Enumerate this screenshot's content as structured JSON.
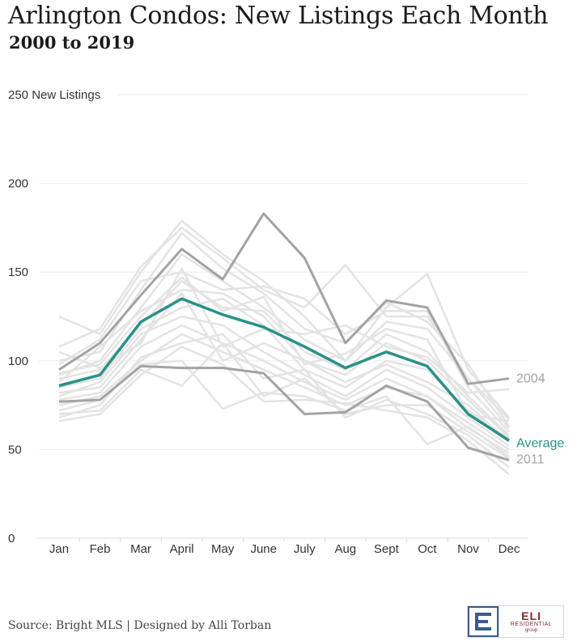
{
  "header": {
    "title": "Arlington Condos: New Listings Each Month",
    "subtitle": "2000 to 2019"
  },
  "footer": {
    "source": "Source: Bright MLS | Designed by Alli Torban",
    "logo_text": "ELI",
    "logo_subtext": "RESIDENTIAL",
    "logo_subtext2": "group"
  },
  "colors": {
    "background_lines": "#e3e3e3",
    "highlight": "#a3a3a3",
    "average": "#2a9187",
    "gridline": "#eeeeee",
    "logo_blue": "#3e5b8a",
    "logo_red": "#8a2433"
  },
  "chart_data": {
    "type": "line",
    "title": "Arlington Condos: New Listings Each Month",
    "subtitle": "2000 to 2019",
    "xlabel": "",
    "ylabel": "New Listings",
    "ylim": [
      0,
      250
    ],
    "yticks": [
      0,
      50,
      100,
      150,
      200,
      250
    ],
    "ytick_labels": [
      "0",
      "50",
      "100",
      "150",
      "200",
      "250 New Listings"
    ],
    "grid": true,
    "categories": [
      "Jan",
      "Feb",
      "Mar",
      "April",
      "May",
      "June",
      "July",
      "Aug",
      "Sept",
      "Oct",
      "Nov",
      "Dec"
    ],
    "series": [
      {
        "name": "Average",
        "role": "average",
        "label": "Average",
        "values": [
          86,
          92,
          122,
          135,
          126,
          119,
          108,
          96,
          105,
          97,
          70,
          55
        ]
      },
      {
        "name": "2004",
        "role": "highlight",
        "label": "2004",
        "values": [
          95,
          110,
          137,
          163,
          146,
          183,
          158,
          110,
          134,
          130,
          87,
          90
        ]
      },
      {
        "name": "2011",
        "role": "highlight",
        "label": "2011",
        "values": [
          77,
          78,
          97,
          96,
          96,
          93,
          70,
          71,
          86,
          77,
          51,
          44
        ]
      },
      {
        "name": "year-a",
        "role": "background",
        "values": [
          125,
          115,
          150,
          179,
          160,
          145,
          125,
          100,
          130,
          149,
          95,
          68
        ]
      },
      {
        "name": "year-b",
        "role": "background",
        "values": [
          108,
          118,
          153,
          175,
          158,
          140,
          130,
          154,
          125,
          125,
          90,
          67
        ]
      },
      {
        "name": "year-c",
        "role": "background",
        "values": [
          100,
          105,
          140,
          172,
          152,
          138,
          118,
          110,
          133,
          122,
          98,
          63
        ]
      },
      {
        "name": "year-d",
        "role": "background",
        "values": [
          98,
          112,
          145,
          150,
          140,
          142,
          135,
          115,
          128,
          128,
          85,
          60
        ]
      },
      {
        "name": "year-e",
        "role": "background",
        "values": [
          92,
          100,
          130,
          160,
          145,
          130,
          112,
          100,
          122,
          118,
          90,
          62
        ]
      },
      {
        "name": "year-f",
        "role": "background",
        "values": [
          90,
          95,
          120,
          145,
          130,
          128,
          105,
          95,
          115,
          105,
          80,
          58
        ]
      },
      {
        "name": "year-g",
        "role": "background",
        "values": [
          88,
          108,
          128,
          140,
          138,
          125,
          100,
          92,
          110,
          100,
          78,
          57
        ]
      },
      {
        "name": "year-h",
        "role": "background",
        "values": [
          85,
          90,
          118,
          130,
          135,
          120,
          95,
          85,
          100,
          95,
          72,
          56
        ]
      },
      {
        "name": "year-i",
        "role": "background",
        "values": [
          82,
          85,
          112,
          138,
          100,
          110,
          100,
          88,
          98,
          88,
          75,
          54
        ]
      },
      {
        "name": "year-j",
        "role": "background",
        "values": [
          80,
          88,
          115,
          125,
          120,
          105,
          92,
          80,
          95,
          85,
          68,
          52
        ]
      },
      {
        "name": "year-k",
        "role": "background",
        "values": [
          78,
          82,
          108,
          120,
          110,
          100,
          88,
          78,
          90,
          80,
          65,
          50
        ]
      },
      {
        "name": "year-l",
        "role": "background",
        "values": [
          75,
          80,
          100,
          115,
          105,
          95,
          85,
          75,
          85,
          80,
          62,
          48
        ]
      },
      {
        "name": "year-m",
        "role": "background",
        "values": [
          72,
          78,
          98,
          100,
          73,
          82,
          80,
          72,
          80,
          53,
          63,
          46
        ]
      },
      {
        "name": "year-n",
        "role": "background",
        "values": [
          70,
          72,
          95,
          86,
          110,
          80,
          90,
          70,
          75,
          75,
          60,
          45
        ]
      },
      {
        "name": "year-o",
        "role": "background",
        "values": [
          68,
          75,
          102,
          110,
          115,
          90,
          95,
          68,
          78,
          70,
          58,
          40
        ]
      },
      {
        "name": "year-p",
        "role": "background",
        "values": [
          66,
          70,
          92,
          108,
          98,
          77,
          78,
          76,
          72,
          68,
          55,
          36
        ]
      },
      {
        "name": "year-q",
        "role": "background",
        "values": [
          93,
          98,
          125,
          147,
          128,
          136,
          98,
          104,
          118,
          112,
          70,
          66
        ]
      },
      {
        "name": "year-r",
        "role": "background",
        "values": [
          105,
          96,
          110,
          152,
          108,
          118,
          115,
          120,
          108,
          102,
          82,
          84
        ]
      }
    ]
  }
}
